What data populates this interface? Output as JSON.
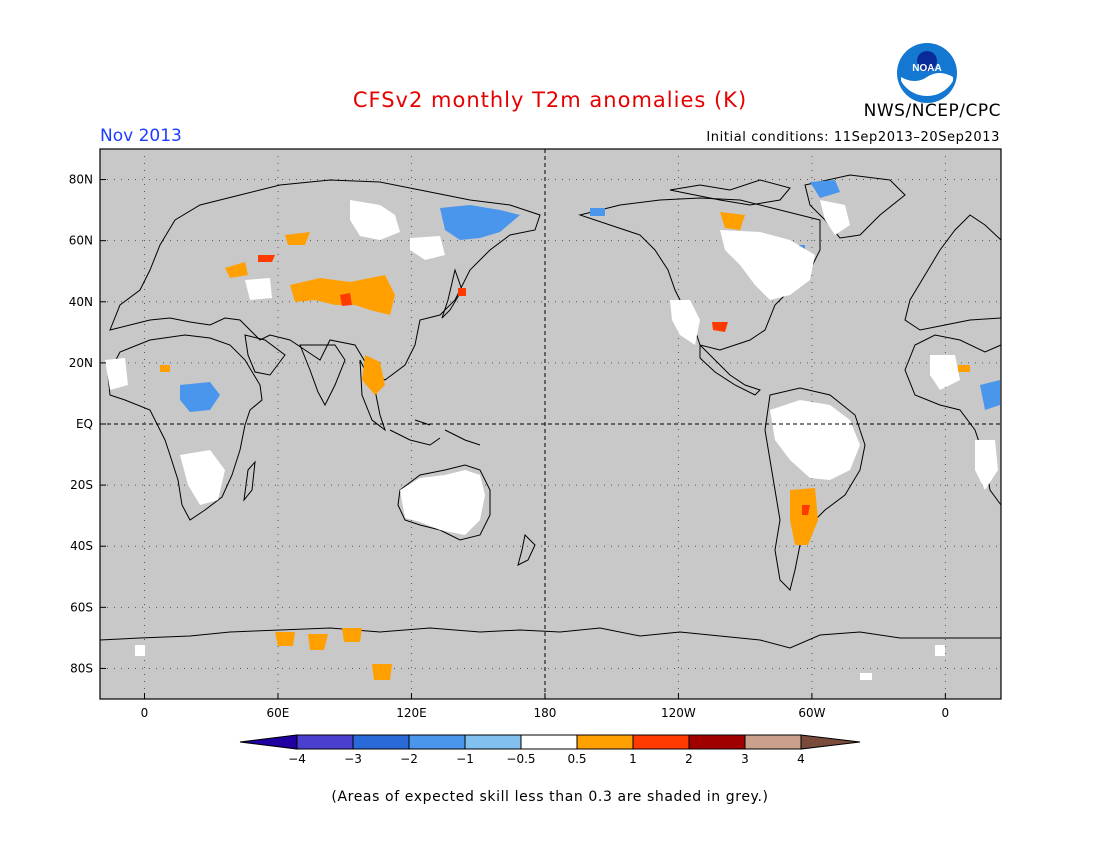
{
  "title": "CFSv2 monthly T2m anomalies (K)",
  "org": "NWS/NCEP/CPC",
  "month": "Nov 2013",
  "initial_conditions": "Initial conditions: 11Sep2013–20Sep2013",
  "footer": "(Areas of expected skill less than 0.3 are shaded in grey.)",
  "logo_text": "NOAA",
  "map": {
    "lat_labels": [
      "80N",
      "60N",
      "40N",
      "20N",
      "EQ",
      "20S",
      "40S",
      "60S",
      "80S"
    ],
    "lat_values": [
      80,
      60,
      40,
      20,
      0,
      -20,
      -40,
      -60,
      -80
    ],
    "lon_labels": [
      "0",
      "60E",
      "120E",
      "180",
      "120W",
      "60W",
      "0"
    ],
    "lon_values": [
      0,
      60,
      120,
      180,
      240,
      300,
      360
    ],
    "lon_range": [
      -20,
      385
    ],
    "lat_range": [
      -90,
      90
    ],
    "colors": {
      "land_grey": "#c8c8c8",
      "ocean_grey": "#c8c8c8",
      "coast": "#000000"
    }
  },
  "colorbar": {
    "labels": [
      "−4",
      "−3",
      "−2",
      "−1",
      "−0.5",
      "0.5",
      "1",
      "2",
      "3",
      "4"
    ],
    "colors": [
      "#2000a0",
      "#4a3fcf",
      "#2a6ad8",
      "#4a96ec",
      "#82c0f0",
      "#ffffff",
      "#ffa000",
      "#ff3a00",
      "#a00000",
      "#c8a08c",
      "#7a4a3a"
    ]
  }
}
